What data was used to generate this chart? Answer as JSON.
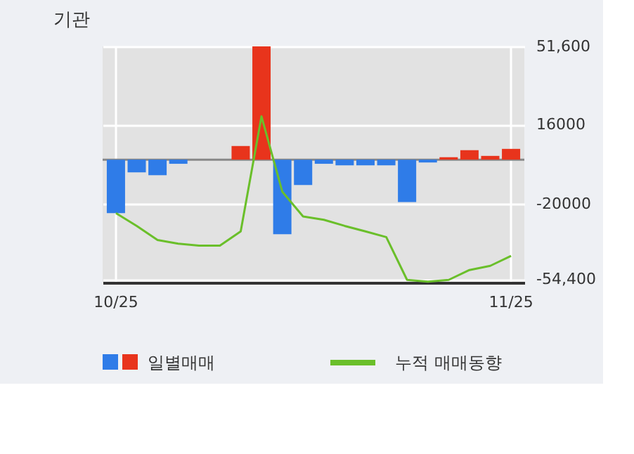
{
  "chart_data": {
    "type": "bar",
    "title": "기관",
    "categories": [
      "10/25",
      null,
      null,
      null,
      null,
      null,
      null,
      null,
      null,
      null,
      null,
      null,
      null,
      null,
      null,
      null,
      null,
      null,
      null,
      "11/25"
    ],
    "series": [
      {
        "name": "일별매매",
        "colors": [
          "#2f7ce8",
          "#2f7ce8",
          "#2f7ce8",
          "#2f7ce8",
          "#2f7ce8",
          "#2f7ce8",
          "#e8341c",
          "#e8341c",
          "#2f7ce8",
          "#2f7ce8",
          "#2f7ce8",
          "#2f7ce8",
          "#2f7ce8",
          "#2f7ce8",
          "#2f7ce8",
          "#2f7ce8",
          "#e8341c",
          "#e8341c",
          "#e8341c",
          "#e8341c"
        ],
        "values": [
          -24400,
          -5800,
          -7100,
          -1900,
          0,
          0,
          6200,
          51600,
          -34000,
          -11600,
          -1900,
          -2600,
          -2600,
          -2600,
          -19300,
          -1300,
          1100,
          4300,
          1700,
          4900
        ]
      },
      {
        "name": "누적 매매동향",
        "type": "line",
        "color": "#6abf2a",
        "values": [
          -24400,
          -30200,
          -36600,
          -38300,
          -39200,
          -39200,
          -32700,
          19700,
          -14600,
          -25900,
          -27400,
          -30200,
          -32700,
          -35300,
          -54800,
          -55600,
          -54800,
          -50300,
          -48400,
          -43900
        ]
      }
    ],
    "ylim": [
      -56000,
      51600
    ],
    "yticks": [
      {
        "value": 51600,
        "label": "51,600"
      },
      {
        "value": 16000,
        "label": "16000"
      },
      {
        "value": -20000,
        "label": "-20000"
      },
      {
        "value": -54400,
        "label": "-54,400"
      }
    ],
    "ref_lines": [
      {
        "axis": "y",
        "value": 0,
        "color": "#888888"
      }
    ],
    "grid": true,
    "legend": "bottom",
    "line_style": "solid",
    "marker": "none"
  }
}
